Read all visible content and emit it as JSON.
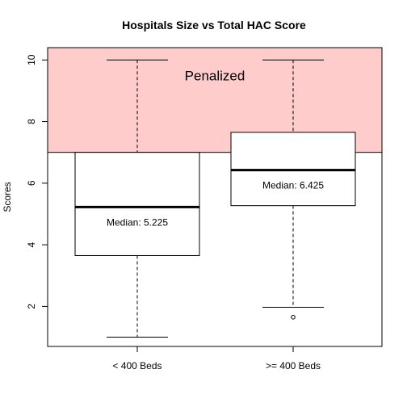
{
  "chart_data": {
    "type": "boxplot",
    "title": "Hospitals Size vs Total HAC Score",
    "xlabel": "",
    "ylabel": "Scores",
    "ylim": [
      0.7,
      10.4
    ],
    "yticks": [
      2,
      4,
      6,
      8,
      10
    ],
    "categories": [
      "< 400 Beds",
      ">= 400 Beds"
    ],
    "boxes": [
      {
        "category": "< 400 Beds",
        "whisker_low": 1.0,
        "q1": 3.65,
        "median": 5.225,
        "q3": 7.0,
        "whisker_high": 10.0,
        "outliers": [],
        "median_label": "Median:  5.225"
      },
      {
        "category": ">= 400 Beds",
        "whisker_low": 1.97,
        "q1": 5.27,
        "median": 6.425,
        "q3": 7.65,
        "whisker_high": 10.0,
        "outliers": [
          1.65
        ],
        "median_label": "Median:  6.425"
      }
    ],
    "penalized_region": {
      "label": "Penalized",
      "from": 7.0,
      "to": 10.4,
      "color": "#ffcccc"
    },
    "grid": false,
    "legend": "none"
  }
}
